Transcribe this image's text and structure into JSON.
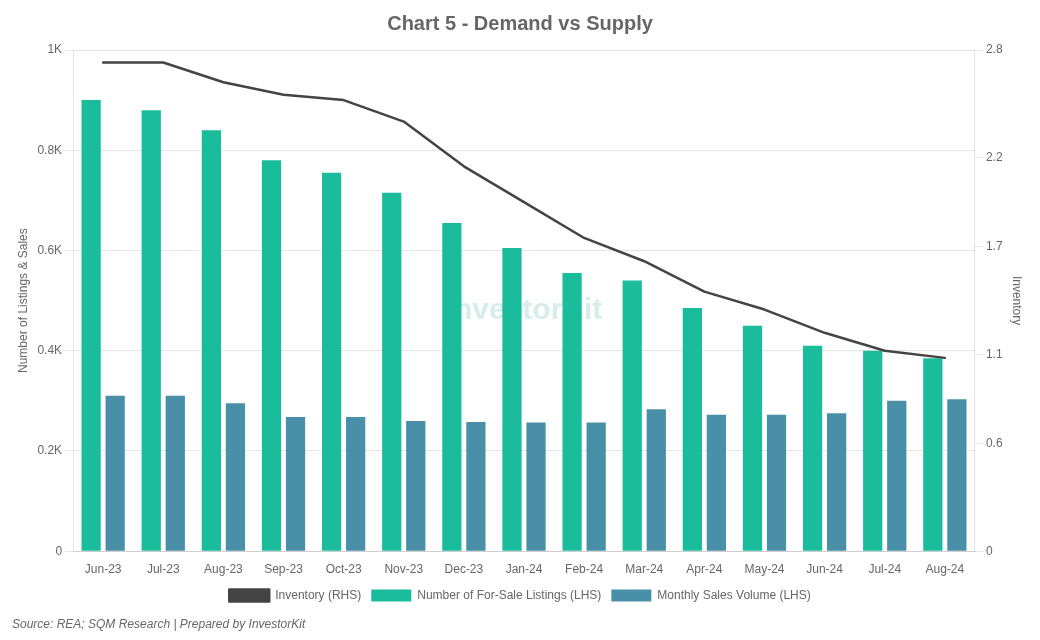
{
  "chart_data": {
    "type": "bar",
    "title": "Chart 5 - Demand vs Supply",
    "ylabel": "Number of Listings & Sales",
    "y2label": "Inventory",
    "source": "Source: REA; SQM Research | Prepared by InvestorKit",
    "watermark": "InvestorKit",
    "categories": [
      "Jun-23",
      "Jul-23",
      "Aug-23",
      "Sep-23",
      "Oct-23",
      "Nov-23",
      "Dec-23",
      "Jan-24",
      "Feb-24",
      "Mar-24",
      "Apr-24",
      "May-24",
      "Jun-24",
      "Jul-24",
      "Aug-24"
    ],
    "series": [
      {
        "name": "Number of For-Sale Listings (LHS)",
        "type": "bar",
        "color": "#1abc9c",
        "values": [
          900,
          880,
          840,
          780,
          755,
          715,
          655,
          605,
          555,
          540,
          485,
          450,
          410,
          400,
          385
        ]
      },
      {
        "name": "Monthly Sales Volume (LHS)",
        "type": "bar",
        "color": "#4a8fa8",
        "values": [
          310,
          310,
          295,
          268,
          268,
          260,
          258,
          257,
          257,
          283,
          272,
          272,
          275,
          300,
          303
        ]
      },
      {
        "name": "Inventory (RHS)",
        "type": "line",
        "axis": "y2",
        "color": "#444444",
        "values": [
          2.73,
          2.73,
          2.62,
          2.55,
          2.52,
          2.4,
          2.15,
          1.95,
          1.75,
          1.62,
          1.45,
          1.35,
          1.22,
          1.12,
          1.08
        ]
      }
    ],
    "ylim": [
      0,
      1000
    ],
    "yticks": [
      0,
      {
        "value": 200,
        "label": "0.2K"
      },
      {
        "value": 400,
        "label": "0.4K"
      },
      {
        "value": 600,
        "label": "0.6K"
      },
      {
        "value": 800,
        "label": "0.8K"
      },
      {
        "value": 1000,
        "label": "1K"
      }
    ],
    "y2lim": [
      0,
      2.8
    ],
    "y2ticks": [
      0,
      0.6,
      1.1,
      1.7,
      2.2,
      2.8
    ],
    "grid": true,
    "legend": "bottom"
  }
}
